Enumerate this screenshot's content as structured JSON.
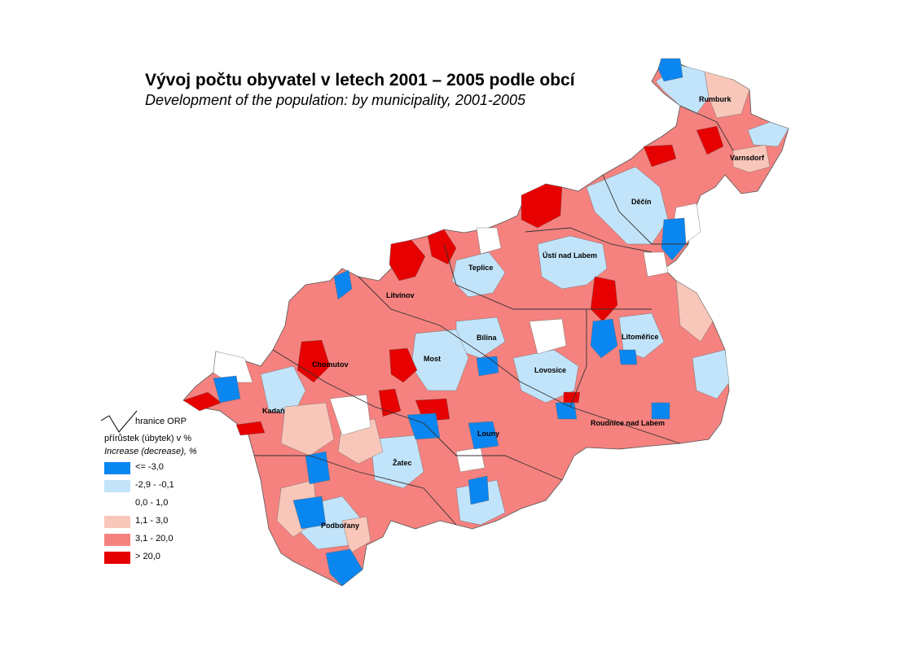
{
  "title": "Vývoj počtu obyvatel v letech 2001 – 2005 podle obcí",
  "subtitle": "Development of the population: by municipality, 2001-2005",
  "legend": {
    "boundary_label": "hranice ORP",
    "title_cz": "přírůstek (úbytek) v %",
    "title_en": "Increase (decrease), %",
    "classes": [
      {
        "label": "<= -3,0",
        "color": "#0a86f0"
      },
      {
        "label": "-2,9 - -0,1",
        "color": "#c2e4fa"
      },
      {
        "label": "0,0 - 1,0",
        "color": "#ffffff"
      },
      {
        "label": "1,1 - 3,0",
        "color": "#f8c7ba"
      },
      {
        "label": "3,1 - 20,0",
        "color": "#f5827f"
      },
      {
        "label": "> 20,0",
        "color": "#e60000"
      }
    ]
  },
  "cities": {
    "rumburk": "Rumburk",
    "varnsdorf": "Varnsdorf",
    "decin": "Děčín",
    "usti": "Ústí nad Labem",
    "teplice": "Teplice",
    "litvinov": "Litvínov",
    "bilina": "Bílina",
    "litomerice": "Litoměřice",
    "most": "Most",
    "chomutov": "Chomutov",
    "lovosice": "Lovosice",
    "kadan": "Kadaň",
    "roudnice": "Roudnice nad Labem",
    "louny": "Louny",
    "zatec": "Žatec",
    "podborany": "Podbořany"
  }
}
